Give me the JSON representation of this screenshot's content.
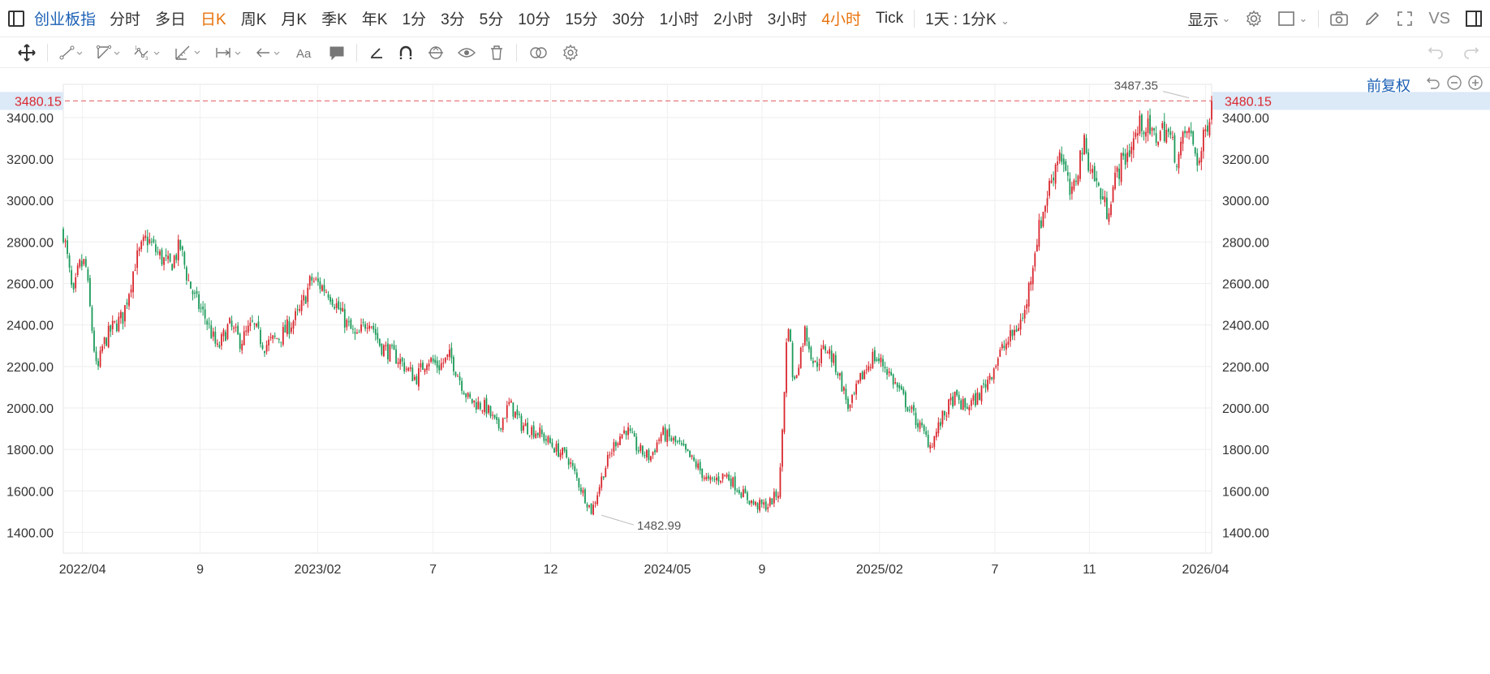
{
  "toolbar": {
    "symbol": "创业板指",
    "timeframes": [
      {
        "label": "分时",
        "active": false
      },
      {
        "label": "多日",
        "active": false
      },
      {
        "label": "日K",
        "active": true
      },
      {
        "label": "周K",
        "active": false
      },
      {
        "label": "月K",
        "active": false
      },
      {
        "label": "季K",
        "active": false
      },
      {
        "label": "年K",
        "active": false
      },
      {
        "label": "1分",
        "active": false
      },
      {
        "label": "3分",
        "active": false
      },
      {
        "label": "5分",
        "active": false
      },
      {
        "label": "10分",
        "active": false
      },
      {
        "label": "15分",
        "active": false
      },
      {
        "label": "30分",
        "active": false
      },
      {
        "label": "1小时",
        "active": false
      },
      {
        "label": "2小时",
        "active": false
      },
      {
        "label": "3小时",
        "active": false
      },
      {
        "label": "4小时",
        "active": true
      },
      {
        "label": "Tick",
        "active": false
      }
    ],
    "custom_interval": "1天 : 1分K",
    "display_label": "显示",
    "compare_label": "VS"
  },
  "colors": {
    "accent": "#1a5fb4",
    "active": "#e8720c",
    "up": "#d9272e",
    "down": "#1b9a59",
    "price_line": "#e35b5b",
    "price_tag_bg": "#dce9f7"
  },
  "chart": {
    "adjust_label": "前复权",
    "current_price": "3480.15",
    "high_label": "3487.35",
    "low_label": "1482.99",
    "y_ticks": [
      "3400.00",
      "3200.00",
      "3000.00",
      "2800.00",
      "2600.00",
      "2400.00",
      "2200.00",
      "2000.00",
      "1800.00",
      "1600.00",
      "1400.00"
    ],
    "x_ticks": [
      "2022/04",
      "9",
      "2023/02",
      "7",
      "12",
      "2024/05",
      "9",
      "2025/02",
      "7",
      "11",
      "2026/04"
    ]
  },
  "chart_data": {
    "type": "candlestick",
    "ylim": [
      1300,
      3560
    ],
    "current_price": 3480.15,
    "high": 3487.35,
    "low": 1482.99,
    "x_tick_labels": [
      "2022/04",
      "9",
      "2023/02",
      "7",
      "12",
      "2024/05",
      "9",
      "2025/02",
      "7",
      "11",
      "2026/04"
    ],
    "anchors_date_value": [
      [
        "2022/03",
        2850
      ],
      [
        "2022/03",
        2720
      ],
      [
        "2022/03",
        2520
      ],
      [
        "2022/03",
        2680
      ],
      [
        "2022/04",
        2700
      ],
      [
        "2022/04",
        2420
      ],
      [
        "2022/04",
        2160
      ],
      [
        "2022/04",
        2300
      ],
      [
        "2022/05",
        2380
      ],
      [
        "2022/05",
        2440
      ],
      [
        "2022/06",
        2700
      ],
      [
        "2022/06",
        2820
      ],
      [
        "2022/07",
        2740
      ],
      [
        "2022/07",
        2680
      ],
      [
        "2022/08",
        2780
      ],
      [
        "2022/08",
        2620
      ],
      [
        "2022/08",
        2520
      ],
      [
        "2022/09",
        2430
      ],
      [
        "2022/09",
        2280
      ],
      [
        "2022/10",
        2400
      ],
      [
        "2022/10",
        2320
      ],
      [
        "2022/11",
        2400
      ],
      [
        "2022/11",
        2300
      ],
      [
        "2022/12",
        2350
      ],
      [
        "2023/01",
        2460
      ],
      [
        "2023/01",
        2620
      ],
      [
        "2023/02",
        2560
      ],
      [
        "2023/03",
        2420
      ],
      [
        "2023/03",
        2330
      ],
      [
        "2023/04",
        2440
      ],
      [
        "2023/04",
        2300
      ],
      [
        "2023/05",
        2240
      ],
      [
        "2023/06",
        2140
      ],
      [
        "2023/06",
        2240
      ],
      [
        "2023/07",
        2200
      ],
      [
        "2023/07",
        2250
      ],
      [
        "2023/08",
        2040
      ],
      [
        "2023/09",
        2000
      ],
      [
        "2023/09",
        1900
      ],
      [
        "2023/10",
        2020
      ],
      [
        "2023/10",
        1920
      ],
      [
        "2023/11",
        1880
      ],
      [
        "2023/12",
        1800
      ],
      [
        "2023/12",
        1760
      ],
      [
        "2024/01",
        1620
      ],
      [
        "2024/01",
        1500
      ],
      [
        "2024/02",
        1700
      ],
      [
        "2024/02",
        1840
      ],
      [
        "2024/03",
        1900
      ],
      [
        "2024/03",
        1800
      ],
      [
        "2024/04",
        1760
      ],
      [
        "2024/04",
        1880
      ],
      [
        "2024/05",
        1820
      ],
      [
        "2024/06",
        1720
      ],
      [
        "2024/06",
        1640
      ],
      [
        "2024/07",
        1680
      ],
      [
        "2024/08",
        1580
      ],
      [
        "2024/08",
        1530
      ],
      [
        "2024/09",
        1530
      ],
      [
        "2024/09",
        1600
      ],
      [
        "2024/10",
        2450
      ],
      [
        "2024/10",
        2100
      ],
      [
        "2024/10",
        2250
      ],
      [
        "2024/10",
        2380
      ],
      [
        "2024/11",
        2200
      ],
      [
        "2024/11",
        2300
      ],
      [
        "2024/12",
        2180
      ],
      [
        "2024/12",
        1990
      ],
      [
        "2025/01",
        2150
      ],
      [
        "2025/01",
        2250
      ],
      [
        "2025/02",
        2200
      ],
      [
        "2025/02",
        2100
      ],
      [
        "2025/04",
        1820
      ],
      [
        "2025/04",
        1950
      ],
      [
        "2025/05",
        2050
      ],
      [
        "2025/05",
        2000
      ],
      [
        "2025/06",
        2050
      ],
      [
        "2025/06",
        2150
      ],
      [
        "2025/07",
        2270
      ],
      [
        "2025/07",
        2350
      ],
      [
        "2025/08",
        2450
      ],
      [
        "2025/08",
        2800
      ],
      [
        "2025/09",
        3050
      ],
      [
        "2025/09",
        3250
      ],
      [
        "2025/10",
        3000
      ],
      [
        "2025/10",
        3280
      ],
      [
        "2025/11",
        3100
      ],
      [
        "2025/11",
        2950
      ],
      [
        "2025/12",
        3150
      ],
      [
        "2025/12",
        3250
      ],
      [
        "2026/01",
        3380
      ],
      [
        "2026/01",
        3300
      ],
      [
        "2026/02",
        3350
      ],
      [
        "2026/02",
        3200
      ],
      [
        "2026/03",
        3350
      ],
      [
        "2026/03",
        3180
      ],
      [
        "2026/04",
        3480
      ]
    ]
  }
}
